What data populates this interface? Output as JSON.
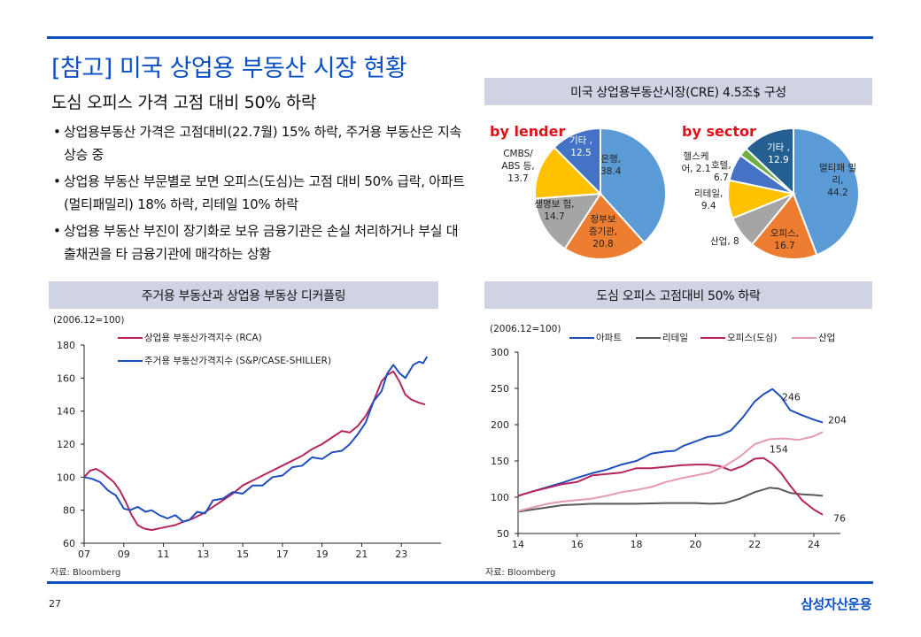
{
  "header": {
    "title": "[참고] 미국 상업용 부동산 시장 현황",
    "subtitle": "도심 오피스 가격 고점 대비 50% 하락"
  },
  "bullets": [
    "상업용부동산 가격은 고점대비(22.7월) 15% 하락, 주거용 부동산은 지속 상승 중",
    "상업용 부동산 부문별로 보면 오피스(도심)는 고점 대비 50% 급락, 아파트(멀티패밀리) 18% 하락, 리테일 10% 하락",
    "상업용 부동산 부진이 장기화로 보유 금융기관은 손실 처리하거나 부실 대출채권을 타 금융기관에 매각하는 상황"
  ],
  "panels": {
    "pie_title": "미국 상업용부동산시장(CRE) 4.5조$ 구성",
    "left_chart_title": "주거용 부동산과 상업용 부동상 디커플링",
    "right_chart_title": "도심 오피스 고점대비 50% 하락"
  },
  "footer": {
    "page": "27",
    "logo": "삼성자산운용",
    "source_left": "자료: Bloomberg",
    "source_right": "자료: Bloomberg"
  },
  "chart_data": [
    {
      "type": "pie",
      "title": "by lender",
      "slices": [
        {
          "label": "은행,",
          "value_text": "38.4",
          "value": 38.4,
          "color": "#5b9bd5"
        },
        {
          "label": "정부보 증기관,",
          "value_text": "20.8",
          "value": 20.8,
          "color": "#ed7d31"
        },
        {
          "label": "생명보 험, 14.7",
          "value_text": "",
          "value": 14.7,
          "color": "#a5a5a5"
        },
        {
          "label": "CMBS/ ABS 등,",
          "value_text": "13.7",
          "value": 13.7,
          "color": "#ffc000"
        },
        {
          "label": "기타 ,",
          "value_text": "12.5",
          "value": 12.5,
          "color": "#4472c4"
        }
      ]
    },
    {
      "type": "pie",
      "title": "by sector",
      "slices": [
        {
          "label": "멀티패 밀리,",
          "value_text": "44.2",
          "value": 44.2,
          "color": "#5b9bd5"
        },
        {
          "label": "오피스,",
          "value_text": "16.7",
          "value": 16.7,
          "color": "#ed7d31"
        },
        {
          "label": "산업, 8",
          "value_text": "",
          "value": 8,
          "color": "#a5a5a5"
        },
        {
          "label": "리테일,",
          "value_text": "9.4",
          "value": 9.4,
          "color": "#ffc000"
        },
        {
          "label": "호텔,",
          "value_text": "6.7",
          "value": 6.7,
          "color": "#4472c4"
        },
        {
          "label": "헬스케 어, 2.1",
          "value_text": "",
          "value": 2.1,
          "color": "#70ad47"
        },
        {
          "label": "기타 ,",
          "value_text": "12.9",
          "value": 12.9,
          "color": "#255e91"
        }
      ]
    },
    {
      "type": "line",
      "title": "주거용 부동산과 상업용 부동상 디커플링",
      "note": "(2006.12=100)",
      "xlim": [
        2007,
        2025
      ],
      "ylim": [
        60,
        180
      ],
      "yticks": [
        60,
        80,
        100,
        120,
        140,
        160,
        180
      ],
      "xtick_labels": [
        "07",
        "09",
        "11",
        "13",
        "15",
        "17",
        "19",
        "21",
        "23"
      ],
      "xtick_values": [
        2007,
        2009,
        2011,
        2013,
        2015,
        2017,
        2019,
        2021,
        2023
      ],
      "series": [
        {
          "name": "상업용 부동산가격지수 (RCA)",
          "color": "#b5245f",
          "x": [
            2007.0,
            2007.3,
            2007.6,
            2007.9,
            2008.2,
            2008.5,
            2008.8,
            2009.1,
            2009.4,
            2009.7,
            2010.0,
            2010.4,
            2010.8,
            2011.2,
            2011.6,
            2012.0,
            2012.5,
            2013.0,
            2013.5,
            2014.0,
            2014.5,
            2015.0,
            2015.5,
            2016.0,
            2016.5,
            2017.0,
            2017.5,
            2018.0,
            2018.5,
            2019.0,
            2019.5,
            2020.0,
            2020.4,
            2020.8,
            2021.2,
            2021.6,
            2022.0,
            2022.3,
            2022.6,
            2022.9,
            2023.2,
            2023.5,
            2023.9,
            2024.2
          ],
          "y": [
            100,
            104,
            105,
            103,
            100,
            97,
            92,
            85,
            77,
            71,
            69,
            68,
            69,
            70,
            71,
            73,
            75,
            78,
            82,
            86,
            90,
            95,
            98,
            101,
            104,
            107,
            110,
            113,
            117,
            120,
            124,
            128,
            127,
            131,
            137,
            146,
            158,
            162,
            164,
            158,
            150,
            147,
            145,
            144
          ]
        },
        {
          "name": "주거용 부동산가격지수 (S&P/CASE-SHILLER)",
          "color": "#1f4fbf",
          "x": [
            2007.0,
            2007.4,
            2007.8,
            2008.2,
            2008.6,
            2009.0,
            2009.3,
            2009.7,
            2010.1,
            2010.4,
            2010.8,
            2011.2,
            2011.6,
            2012.0,
            2012.3,
            2012.7,
            2013.1,
            2013.5,
            2014.0,
            2014.5,
            2015.0,
            2015.5,
            2016.0,
            2016.5,
            2017.0,
            2017.5,
            2018.0,
            2018.5,
            2019.0,
            2019.5,
            2020.0,
            2020.4,
            2020.8,
            2021.2,
            2021.6,
            2022.0,
            2022.3,
            2022.6,
            2022.9,
            2023.2,
            2023.6,
            2023.9,
            2024.1,
            2024.3
          ],
          "y": [
            100,
            99,
            97,
            92,
            89,
            81,
            80,
            82,
            79,
            80,
            77,
            75,
            77,
            73,
            74,
            79,
            78,
            86,
            87,
            91,
            90,
            95,
            95,
            100,
            101,
            106,
            107,
            112,
            111,
            115,
            116,
            120,
            126,
            133,
            146,
            152,
            163,
            168,
            163,
            160,
            168,
            170,
            169,
            173
          ]
        }
      ]
    },
    {
      "type": "line",
      "title": "도심 오피스 고점대비 50% 하락",
      "note": "(2006.12=100)",
      "xlim": [
        2014,
        2024.9
      ],
      "ylim": [
        50,
        300
      ],
      "yticks": [
        50,
        100,
        150,
        200,
        250,
        300
      ],
      "xtick_labels": [
        "14",
        "16",
        "18",
        "20",
        "22",
        "24"
      ],
      "xtick_values": [
        2014,
        2016,
        2018,
        2020,
        2022,
        2024
      ],
      "annotations": [
        {
          "text": "246",
          "x": 2022.5,
          "y": 246,
          "series": "아파트"
        },
        {
          "text": "204",
          "x": 2024.3,
          "y": 204,
          "series": "아파트"
        },
        {
          "text": "154",
          "x": 2022.2,
          "y": 154,
          "series": "오피스(도심)"
        },
        {
          "text": "76",
          "x": 2024.3,
          "y": 76,
          "series": "오피스(도심)"
        }
      ],
      "series": [
        {
          "name": "아파트",
          "color": "#1f4fbf",
          "x": [
            2014.0,
            2014.5,
            2015.0,
            2015.5,
            2016.0,
            2016.5,
            2017.0,
            2017.5,
            2018.0,
            2018.5,
            2019.0,
            2019.3,
            2019.6,
            2020.0,
            2020.4,
            2020.8,
            2021.2,
            2021.6,
            2022.0,
            2022.3,
            2022.6,
            2022.9,
            2023.2,
            2023.6,
            2024.0,
            2024.3
          ],
          "y": [
            102,
            108,
            114,
            120,
            127,
            133,
            138,
            145,
            150,
            160,
            163,
            164,
            171,
            177,
            183,
            185,
            192,
            210,
            232,
            242,
            249,
            238,
            220,
            213,
            207,
            203
          ]
        },
        {
          "name": "리테일",
          "color": "#595959",
          "x": [
            2014.0,
            2014.5,
            2015.0,
            2015.5,
            2016.0,
            2016.5,
            2017.0,
            2018.0,
            2019.0,
            2020.0,
            2020.5,
            2021.0,
            2021.5,
            2022.0,
            2022.5,
            2022.8,
            2023.2,
            2023.6,
            2024.0,
            2024.3
          ],
          "y": [
            80,
            83,
            86,
            89,
            90,
            91,
            91,
            91,
            92,
            92,
            91,
            92,
            98,
            107,
            113,
            112,
            106,
            104,
            103,
            102
          ]
        },
        {
          "name": "오피스(도심)",
          "color": "#b5245f",
          "x": [
            2014.0,
            2014.5,
            2015.0,
            2015.5,
            2016.0,
            2016.5,
            2017.0,
            2017.5,
            2018.0,
            2018.5,
            2019.0,
            2019.5,
            2020.0,
            2020.4,
            2020.8,
            2021.2,
            2021.6,
            2022.0,
            2022.3,
            2022.6,
            2022.9,
            2023.2,
            2023.6,
            2024.0,
            2024.3
          ],
          "y": [
            102,
            108,
            113,
            118,
            121,
            130,
            132,
            134,
            140,
            140,
            142,
            144,
            145,
            145,
            143,
            137,
            143,
            153,
            154,
            146,
            133,
            116,
            96,
            83,
            76
          ]
        },
        {
          "name": "산업",
          "color": "#e59aaf",
          "x": [
            2014.0,
            2014.5,
            2015.0,
            2015.5,
            2016.0,
            2016.5,
            2017.0,
            2017.5,
            2018.0,
            2018.5,
            2019.0,
            2019.5,
            2020.0,
            2020.5,
            2021.0,
            2021.5,
            2022.0,
            2022.5,
            2023.0,
            2023.5,
            2024.0,
            2024.3
          ],
          "y": [
            81,
            86,
            91,
            94,
            96,
            98,
            102,
            107,
            110,
            114,
            121,
            126,
            130,
            134,
            143,
            156,
            173,
            180,
            181,
            179,
            184,
            190
          ]
        }
      ]
    }
  ]
}
